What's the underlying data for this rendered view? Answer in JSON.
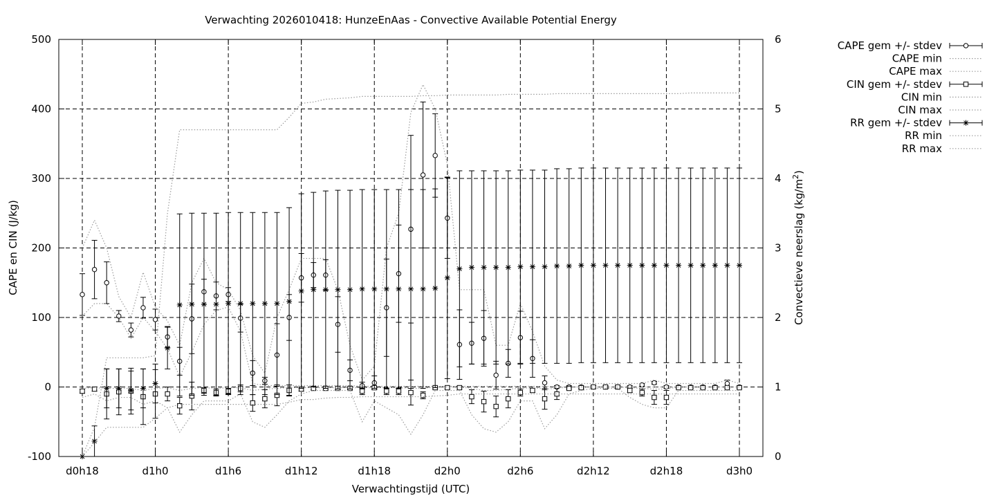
{
  "chart_data": {
    "type": "line",
    "title": "Verwachting 2026010418: HunzeEnAas - Convective Available Potential Energy",
    "xlabel": "Verwachtingstijd (UTC)",
    "ylabel": "CAPE en CIN (J/kg)",
    "y2label_main": "Convectieve neerslag (kg/m",
    "y2label_sup": "2",
    "y2label_end": ")",
    "xlim": [
      18,
      72
    ],
    "ylim": [
      -100,
      500
    ],
    "y2lim": [
      0,
      6
    ],
    "grid": true,
    "legend_position": "outside-right-top",
    "x_ticks": [
      {
        "value": 18,
        "label": "d0h18"
      },
      {
        "value": 24,
        "label": "d1h0"
      },
      {
        "value": 30,
        "label": "d1h6"
      },
      {
        "value": 36,
        "label": "d1h12"
      },
      {
        "value": 42,
        "label": "d1h18"
      },
      {
        "value": 48,
        "label": "d2h0"
      },
      {
        "value": 54,
        "label": "d2h6"
      },
      {
        "value": 60,
        "label": "d2h12"
      },
      {
        "value": 66,
        "label": "d2h18"
      },
      {
        "value": 72,
        "label": "d3h0"
      }
    ],
    "y_ticks": [
      {
        "value": -100,
        "label": "-100"
      },
      {
        "value": 0,
        "label": "0"
      },
      {
        "value": 100,
        "label": "100"
      },
      {
        "value": 200,
        "label": "200"
      },
      {
        "value": 300,
        "label": "300"
      },
      {
        "value": 400,
        "label": "400"
      },
      {
        "value": 500,
        "label": "500"
      }
    ],
    "y2_ticks": [
      {
        "value": 0,
        "label": "0"
      },
      {
        "value": 1,
        "label": "1"
      },
      {
        "value": 2,
        "label": "2"
      },
      {
        "value": 3,
        "label": "3"
      },
      {
        "value": 4,
        "label": "4"
      },
      {
        "value": 5,
        "label": "5"
      },
      {
        "value": 6,
        "label": "6"
      }
    ],
    "x": [
      18,
      19,
      20,
      21,
      22,
      23,
      24,
      25,
      26,
      27,
      28,
      29,
      30,
      31,
      32,
      33,
      34,
      35,
      36,
      37,
      38,
      39,
      40,
      41,
      42,
      43,
      44,
      45,
      46,
      47,
      48,
      49,
      50,
      51,
      52,
      53,
      54,
      55,
      56,
      57,
      58,
      59,
      60,
      61,
      62,
      63,
      64,
      65,
      66,
      67,
      68,
      69,
      70,
      71,
      72
    ],
    "series": [
      {
        "name": "CAPE gem +/- stdev",
        "axis": "y1",
        "marker": "circle",
        "mean": [
          133,
          169,
          150,
          102,
          82,
          114,
          97,
          72,
          37,
          98,
          137,
          131,
          133,
          99,
          20,
          9,
          46,
          100,
          157,
          161,
          161,
          90,
          24,
          2,
          6,
          114,
          163,
          227,
          305,
          333,
          243,
          61,
          63,
          70,
          17,
          34,
          71,
          41,
          6,
          0,
          0,
          0,
          0,
          0,
          0,
          0,
          3,
          6,
          0,
          0,
          0,
          0,
          0,
          5,
          0
        ],
        "sd": [
          30,
          42,
          30,
          8,
          10,
          15,
          15,
          15,
          20,
          50,
          18,
          20,
          10,
          20,
          18,
          5,
          45,
          33,
          35,
          18,
          22,
          40,
          15,
          5,
          10,
          70,
          70,
          135,
          105,
          60,
          58,
          50,
          30,
          40,
          20,
          20,
          38,
          27,
          10,
          2,
          2,
          2,
          2,
          2,
          2,
          2,
          2,
          2,
          2,
          2,
          2,
          2,
          2,
          5,
          2
        ]
      },
      {
        "name": "CAPE min",
        "axis": "y1",
        "values": [
          102,
          120,
          120,
          100,
          70,
          100,
          80,
          55,
          15,
          50,
          90,
          110,
          115,
          80,
          5,
          2,
          2,
          2,
          2,
          2,
          2,
          2,
          2,
          1,
          1,
          1,
          1,
          1,
          1,
          1,
          1,
          1,
          1,
          1,
          1,
          1,
          1,
          1,
          1,
          0,
          0,
          0,
          0,
          0,
          0,
          0,
          0,
          0,
          0,
          0,
          0,
          0,
          0,
          0,
          0
        ]
      },
      {
        "name": "CAPE max",
        "axis": "y1",
        "values": [
          200,
          240,
          200,
          130,
          100,
          165,
          115,
          95,
          60,
          150,
          185,
          150,
          140,
          110,
          45,
          20,
          100,
          140,
          185,
          185,
          185,
          140,
          60,
          10,
          30,
          200,
          250,
          395,
          435,
          400,
          320,
          140,
          140,
          140,
          60,
          60,
          120,
          80,
          30,
          10,
          5,
          5,
          5,
          5,
          5,
          5,
          5,
          10,
          5,
          5,
          5,
          5,
          5,
          10,
          5
        ]
      },
      {
        "name": "CIN gem +/- stdev",
        "axis": "y1",
        "marker": "square",
        "mean": [
          -6,
          -3,
          -10,
          -7,
          -6,
          -14,
          -10,
          -10,
          -27,
          -13,
          -5,
          -8,
          -6,
          -2,
          -23,
          -17,
          -12,
          -5,
          -3,
          -2,
          -2,
          -2,
          -2,
          -6,
          -1,
          -6,
          -6,
          -8,
          -12,
          -1,
          -1,
          -1,
          -14,
          -21,
          -28,
          -17,
          -8,
          -5,
          -17,
          -10,
          -2,
          -1,
          0,
          0,
          0,
          -5,
          -8,
          -15,
          -15,
          -1,
          -1,
          -1,
          -1,
          -1,
          -1
        ],
        "sd": [
          3,
          3,
          36,
          33,
          33,
          40,
          35,
          10,
          12,
          20,
          4,
          5,
          4,
          5,
          12,
          13,
          15,
          8,
          3,
          2,
          2,
          2,
          2,
          5,
          2,
          5,
          5,
          18,
          5,
          2,
          2,
          2,
          10,
          15,
          15,
          13,
          5,
          3,
          15,
          8,
          2,
          2,
          1,
          1,
          1,
          3,
          5,
          10,
          10,
          1,
          1,
          1,
          1,
          1,
          1
        ]
      },
      {
        "name": "CIN min",
        "axis": "y1",
        "values": [
          -15,
          -10,
          -20,
          -15,
          -15,
          -25,
          -20,
          -30,
          -65,
          -40,
          -20,
          -20,
          -20,
          -10,
          -50,
          -58,
          -40,
          -20,
          -10,
          -5,
          -5,
          -5,
          -5,
          -50,
          -20,
          -30,
          -40,
          -68,
          -40,
          -5,
          -5,
          -5,
          -40,
          -60,
          -65,
          -50,
          -20,
          -20,
          -60,
          -40,
          -10,
          -5,
          -2,
          -2,
          -2,
          -15,
          -25,
          -30,
          -30,
          -5,
          -5,
          -5,
          -5,
          -5,
          -5
        ]
      },
      {
        "name": "CIN max",
        "axis": "y1",
        "values": [
          -2,
          -1,
          -2,
          -2,
          -2,
          -5,
          -2,
          -1,
          -5,
          -2,
          -1,
          -2,
          -1,
          -1,
          -5,
          -3,
          -2,
          -1,
          -1,
          -1,
          -1,
          -1,
          -1,
          -1,
          -1,
          -1,
          -1,
          -2,
          -2,
          0,
          0,
          0,
          -2,
          -5,
          -5,
          -3,
          -2,
          -1,
          -3,
          -2,
          0,
          0,
          0,
          0,
          0,
          -1,
          -2,
          -3,
          -3,
          0,
          0,
          0,
          0,
          0,
          0
        ]
      },
      {
        "name": "RR gem +/- stdev",
        "axis": "y2",
        "marker": "star",
        "mean": [
          0,
          0.22,
          0.98,
          0.98,
          0.95,
          0.98,
          1.05,
          1.56,
          2.18,
          2.19,
          2.19,
          2.19,
          2.2,
          2.2,
          2.2,
          2.2,
          2.2,
          2.23,
          2.38,
          2.4,
          2.4,
          2.4,
          2.4,
          2.41,
          2.41,
          2.41,
          2.41,
          2.41,
          2.41,
          2.42,
          2.57,
          2.7,
          2.72,
          2.72,
          2.72,
          2.72,
          2.73,
          2.73,
          2.73,
          2.74,
          2.74,
          2.75,
          2.75,
          2.75,
          2.75,
          2.75,
          2.75,
          2.75,
          2.75,
          2.75,
          2.75,
          2.75,
          2.75,
          2.75,
          2.75
        ],
        "sd": [
          0,
          0.22,
          0.28,
          0.28,
          0.28,
          0.28,
          0.28,
          0.3,
          1.31,
          1.31,
          1.31,
          1.31,
          1.31,
          1.31,
          1.31,
          1.31,
          1.31,
          1.35,
          1.4,
          1.4,
          1.42,
          1.43,
          1.43,
          1.43,
          1.43,
          1.43,
          1.43,
          1.43,
          1.43,
          1.43,
          1.45,
          1.41,
          1.39,
          1.39,
          1.39,
          1.39,
          1.39,
          1.39,
          1.39,
          1.4,
          1.4,
          1.4,
          1.4,
          1.4,
          1.4,
          1.4,
          1.4,
          1.4,
          1.4,
          1.4,
          1.4,
          1.4,
          1.4,
          1.4,
          1.4
        ]
      },
      {
        "name": "RR min",
        "axis": "y2",
        "values": [
          0,
          0.2,
          0.42,
          0.42,
          0.42,
          0.42,
          0.55,
          0.7,
          0.75,
          0.75,
          0.75,
          0.75,
          0.75,
          0.75,
          0.75,
          0.75,
          0.75,
          0.78,
          0.82,
          0.82,
          0.84,
          0.85,
          0.85,
          0.86,
          0.86,
          0.86,
          0.86,
          0.86,
          0.86,
          0.87,
          0.88,
          0.9,
          0.9,
          0.9,
          0.9,
          0.9,
          0.9,
          0.9,
          0.9,
          0.9,
          0.9,
          0.9,
          0.9,
          0.9,
          0.9,
          0.9,
          0.9,
          0.9,
          0.9,
          0.9,
          0.9,
          0.9,
          0.9,
          0.9,
          0.9
        ]
      },
      {
        "name": "RR max",
        "axis": "y2",
        "values": [
          0,
          0.42,
          1.42,
          1.42,
          1.42,
          1.42,
          1.45,
          3.5,
          4.7,
          4.7,
          4.7,
          4.7,
          4.7,
          4.7,
          4.7,
          4.7,
          4.7,
          4.88,
          5.08,
          5.1,
          5.14,
          5.15,
          5.16,
          5.18,
          5.18,
          5.18,
          5.18,
          5.18,
          5.19,
          5.19,
          5.2,
          5.2,
          5.2,
          5.2,
          5.2,
          5.21,
          5.21,
          5.21,
          5.21,
          5.22,
          5.22,
          5.22,
          5.22,
          5.22,
          5.22,
          5.22,
          5.22,
          5.22,
          5.22,
          5.22,
          5.23,
          5.23,
          5.23,
          5.23,
          5.23
        ]
      }
    ]
  }
}
